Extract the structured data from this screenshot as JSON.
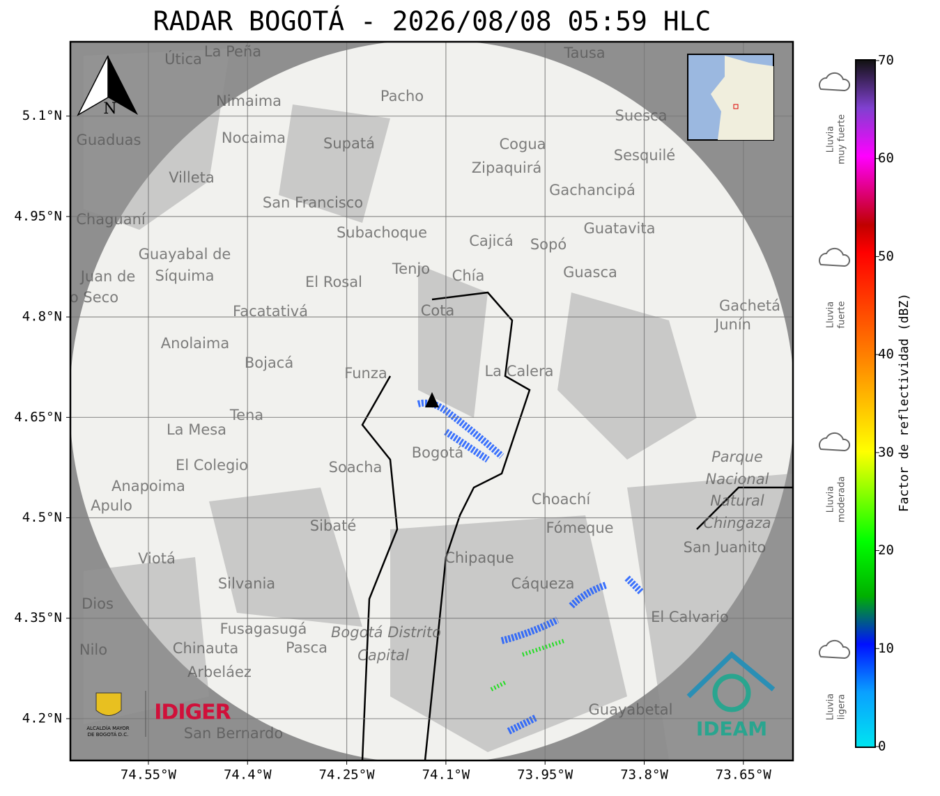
{
  "title": "RADAR BOGOTÁ - 2026/08/08 05:59 HLC",
  "map": {
    "xlim": [
      -74.668,
      -73.575
    ],
    "ylim": [
      4.1375,
      5.211
    ],
    "xticks": [
      {
        "value": -74.55,
        "label": "74.55°W"
      },
      {
        "value": -74.4,
        "label": "74.4°W"
      },
      {
        "value": -74.25,
        "label": "74.25°W"
      },
      {
        "value": -74.1,
        "label": "74.1°W"
      },
      {
        "value": -73.95,
        "label": "73.95°W"
      },
      {
        "value": -73.8,
        "label": "73.8°W"
      },
      {
        "value": -73.65,
        "label": "73.65°W"
      }
    ],
    "yticks": [
      {
        "value": 5.1,
        "label": "5.1°N"
      },
      {
        "value": 4.95,
        "label": "4.95°N"
      },
      {
        "value": 4.8,
        "label": "4.8°N"
      },
      {
        "value": 4.65,
        "label": "4.65°N"
      },
      {
        "value": 4.5,
        "label": "4.5°N"
      },
      {
        "value": 4.35,
        "label": "4.35°N"
      },
      {
        "value": 4.2,
        "label": "4.2°N"
      }
    ],
    "places": [
      "La Peña",
      "Útica",
      "Tausa",
      "Pacho",
      "Nimaima",
      "Nocaima",
      "Supatá",
      "Guaduas",
      "Suesca",
      "Cogua",
      "Zipaquirá",
      "Sesquilé",
      "Villeta",
      "San Francisco",
      "Gachancipá",
      "Chaguaní",
      "Subachoque",
      "Guatavita",
      "Cajicá",
      "Sopó",
      "Guayabal de",
      "Síquima",
      "Tenjo",
      "Chía",
      "Guasca",
      "El Rosal",
      "Juan de",
      "o Seco",
      "Facatativá",
      "Cota",
      "Gachetá",
      "Junín",
      "Anolaima",
      "Bojacá",
      "Funza",
      "La Calera",
      "Tena",
      "La Mesa",
      "Bogotá",
      "Soacha",
      "El Colegio",
      "Parque",
      "Nacional",
      "Natural",
      "Chingaza",
      "Anapoima",
      "Apulo",
      "Choachí",
      "Sibaté",
      "Fómeque",
      "San Juanito",
      "Chipaque",
      "Viotá",
      "Silvania",
      "Cáqueza",
      "Dios",
      "El Calvario",
      "Fusagasugá",
      "Bogotá Distrito",
      "Capital",
      "Chinauta",
      "Pasca",
      "Nilo",
      "Arbeláez",
      "Guayabetal",
      "San Bernardo"
    ],
    "north": "N"
  },
  "colorbar": {
    "label": "Factor de reflectividad (dBZ)",
    "lim": [
      0,
      70
    ],
    "ticks": [
      0,
      10,
      20,
      30,
      40,
      50,
      60,
      70
    ]
  },
  "rain_levels": [
    [
      "Lluvia",
      "muy fuerte"
    ],
    [
      "Lluvia",
      "fuerte"
    ],
    [
      "Lluvia",
      "moderada"
    ],
    [
      "Lluvia",
      "ligera"
    ]
  ],
  "logos": {
    "alcaldia": [
      "ALCALDÍA MAYOR",
      "DE BOGOTÁ D.C."
    ],
    "idiger": "IDIGER",
    "ideam": "IDEAM"
  }
}
